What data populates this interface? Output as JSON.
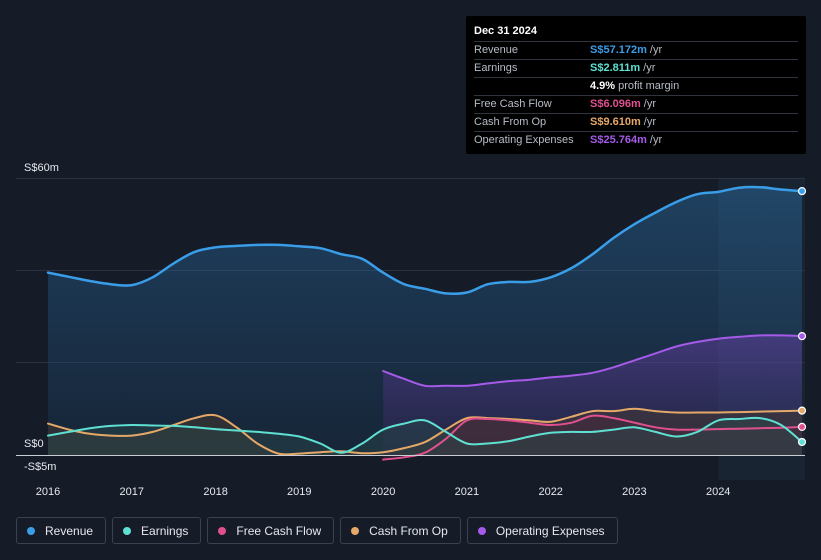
{
  "tooltip": {
    "date": "Dec 31 2024",
    "rows": [
      {
        "label": "Revenue",
        "value": "S$57.172m",
        "unit": "/yr",
        "color": "#3a9de8"
      },
      {
        "label": "Earnings",
        "value": "S$2.811m",
        "unit": "/yr",
        "color": "#5ee1d2"
      },
      {
        "label": "",
        "value": "4.9%",
        "unit": "profit margin",
        "color": "#ffffff"
      },
      {
        "label": "Free Cash Flow",
        "value": "S$6.096m",
        "unit": "/yr",
        "color": "#e0508f"
      },
      {
        "label": "Cash From Op",
        "value": "S$9.610m",
        "unit": "/yr",
        "color": "#e6a868"
      },
      {
        "label": "Operating Expenses",
        "value": "S$25.764m",
        "unit": "/yr",
        "color": "#a55ae8"
      }
    ]
  },
  "legend": [
    {
      "label": "Revenue",
      "color": "#3a9de8"
    },
    {
      "label": "Earnings",
      "color": "#5ee1d2"
    },
    {
      "label": "Free Cash Flow",
      "color": "#e0508f"
    },
    {
      "label": "Cash From Op",
      "color": "#e6a868"
    },
    {
      "label": "Operating Expenses",
      "color": "#a55ae8"
    }
  ],
  "chart_data": {
    "type": "area",
    "y_top_label": "S$60m",
    "y_zero_label": "S$0",
    "y_bottom_label": "-S$5m",
    "ylim": [
      -5,
      60
    ],
    "x_ticks": [
      {
        "label": "2016",
        "x": 2016.0
      },
      {
        "label": "2017",
        "x": 2017.0
      },
      {
        "label": "2018",
        "x": 2018.0
      },
      {
        "label": "2019",
        "x": 2019.0
      },
      {
        "label": "2020",
        "x": 2020.0
      },
      {
        "label": "2021",
        "x": 2021.0
      },
      {
        "label": "2022",
        "x": 2022.0
      },
      {
        "label": "2023",
        "x": 2023.0
      },
      {
        "label": "2024",
        "x": 2024.0
      }
    ],
    "xlim": [
      2015.63,
      2025.0
    ],
    "highlight_start": 2024.0,
    "series": [
      {
        "name": "Revenue",
        "key": "revenue",
        "color": "#3a9de8",
        "x": [
          2016.0,
          2016.25,
          2016.5,
          2016.75,
          2017.0,
          2017.25,
          2017.5,
          2017.75,
          2018.0,
          2018.25,
          2018.5,
          2018.75,
          2019.0,
          2019.25,
          2019.5,
          2019.75,
          2020.0,
          2020.25,
          2020.5,
          2020.75,
          2021.0,
          2021.25,
          2021.5,
          2021.75,
          2022.0,
          2022.25,
          2022.5,
          2022.75,
          2023.0,
          2023.25,
          2023.5,
          2023.75,
          2024.0,
          2024.25,
          2024.5,
          2024.75,
          2025.0
        ],
        "values": [
          39.5,
          38.6,
          37.7,
          37.0,
          36.8,
          38.5,
          41.5,
          44.0,
          45.0,
          45.3,
          45.5,
          45.5,
          45.2,
          44.8,
          43.5,
          42.5,
          39.5,
          37.0,
          36.0,
          35.0,
          35.2,
          37.0,
          37.5,
          37.5,
          38.5,
          40.5,
          43.5,
          47.0,
          50.0,
          52.5,
          54.8,
          56.5,
          57.0,
          57.9,
          58.0,
          57.5,
          57.172
        ]
      },
      {
        "name": "Operating Expenses",
        "key": "opex",
        "color": "#a55ae8",
        "x": [
          2020.0,
          2020.25,
          2020.5,
          2020.75,
          2021.0,
          2021.25,
          2021.5,
          2021.75,
          2022.0,
          2022.25,
          2022.5,
          2022.75,
          2023.0,
          2023.25,
          2023.5,
          2023.75,
          2024.0,
          2024.25,
          2024.5,
          2024.75,
          2025.0
        ],
        "values": [
          18.2,
          16.5,
          15.0,
          15.0,
          15.0,
          15.5,
          16.0,
          16.3,
          16.8,
          17.2,
          17.8,
          19.0,
          20.5,
          22.0,
          23.5,
          24.5,
          25.2,
          25.6,
          25.9,
          25.9,
          25.764
        ]
      },
      {
        "name": "Cash From Op",
        "key": "cfo",
        "color": "#e6a868",
        "x": [
          2016.0,
          2016.25,
          2016.5,
          2016.75,
          2017.0,
          2017.25,
          2017.5,
          2017.75,
          2018.0,
          2018.25,
          2018.5,
          2018.75,
          2019.0,
          2019.25,
          2019.5,
          2019.75,
          2020.0,
          2020.25,
          2020.5,
          2020.75,
          2021.0,
          2021.25,
          2021.5,
          2021.75,
          2022.0,
          2022.25,
          2022.5,
          2022.75,
          2023.0,
          2023.25,
          2023.5,
          2023.75,
          2024.0,
          2024.25,
          2024.5,
          2024.75,
          2025.0
        ],
        "values": [
          6.8,
          5.5,
          4.6,
          4.2,
          4.2,
          5.0,
          6.5,
          8.0,
          8.6,
          6.0,
          2.5,
          0.3,
          0.3,
          0.6,
          0.8,
          0.4,
          0.6,
          1.5,
          2.8,
          5.5,
          8.0,
          8.0,
          7.8,
          7.5,
          7.2,
          8.3,
          9.5,
          9.5,
          10.0,
          9.5,
          9.2,
          9.2,
          9.2,
          9.3,
          9.4,
          9.5,
          9.61
        ]
      },
      {
        "name": "Free Cash Flow",
        "key": "fcf",
        "color": "#e0508f",
        "x": [
          2020.0,
          2020.25,
          2020.5,
          2020.75,
          2021.0,
          2021.25,
          2021.5,
          2021.75,
          2022.0,
          2022.25,
          2022.5,
          2022.75,
          2023.0,
          2023.25,
          2023.5,
          2023.75,
          2024.0,
          2024.25,
          2024.5,
          2024.75,
          2025.0
        ],
        "values": [
          -1.0,
          -0.5,
          0.5,
          3.5,
          7.5,
          7.8,
          7.5,
          7.0,
          6.5,
          7.0,
          8.5,
          8.0,
          7.0,
          6.0,
          5.5,
          5.5,
          5.6,
          5.7,
          5.8,
          5.9,
          6.096
        ]
      },
      {
        "name": "Earnings",
        "key": "earnings",
        "color": "#5ee1d2",
        "x": [
          2016.0,
          2016.25,
          2016.5,
          2016.75,
          2017.0,
          2017.25,
          2017.5,
          2017.75,
          2018.0,
          2018.25,
          2018.5,
          2018.75,
          2019.0,
          2019.25,
          2019.5,
          2019.75,
          2020.0,
          2020.25,
          2020.5,
          2020.75,
          2021.0,
          2021.25,
          2021.5,
          2021.75,
          2022.0,
          2022.25,
          2022.5,
          2022.75,
          2023.0,
          2023.25,
          2023.5,
          2023.75,
          2024.0,
          2024.25,
          2024.5,
          2024.75,
          2025.0
        ],
        "values": [
          4.2,
          5.0,
          5.8,
          6.3,
          6.5,
          6.4,
          6.3,
          6.0,
          5.6,
          5.3,
          5.0,
          4.6,
          4.0,
          2.5,
          0.5,
          2.5,
          5.5,
          6.8,
          7.5,
          5.0,
          2.5,
          2.5,
          3.0,
          4.0,
          4.8,
          5.0,
          5.0,
          5.5,
          6.0,
          5.0,
          4.0,
          5.0,
          7.5,
          7.8,
          8.0,
          6.5,
          2.811
        ]
      }
    ]
  }
}
